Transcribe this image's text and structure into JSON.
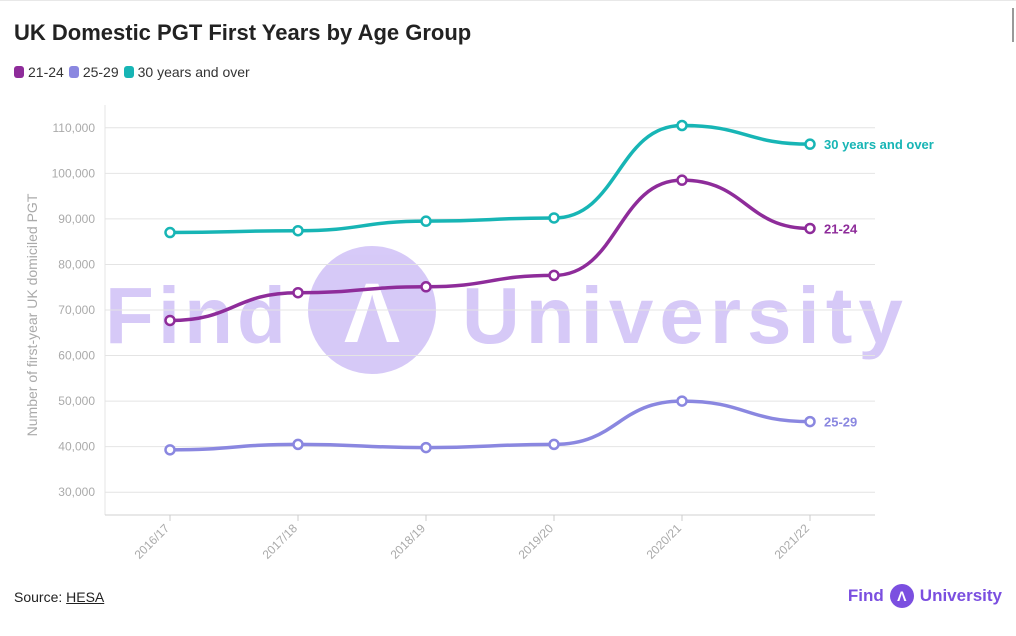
{
  "page": {
    "title": "UK Domestic PGT First Years by Age Group",
    "source_prefix": "Source: ",
    "source_link": "HESA",
    "brand_left": "Find",
    "brand_right": "University",
    "brand_glyph": "Λ",
    "watermark_left": "Find",
    "watermark_right": "University",
    "watermark_glyph": "Λ"
  },
  "colors": {
    "series_21_24": "#8e2c9a",
    "series_25_29": "#8a87e0",
    "series_30_plus": "#17b5b5",
    "watermark": "#c9b8f5",
    "grid": "#e4e4e4",
    "axis_text": "#aaaaaa"
  },
  "chart_data": {
    "type": "line",
    "title": "UK Domestic PGT First Years by Age Group",
    "xlabel": "",
    "ylabel": "Number of first-year UK domiciled PGT",
    "categories": [
      "2016/17",
      "2017/18",
      "2018/19",
      "2019/20",
      "2020/21",
      "2021/22"
    ],
    "ylim": [
      25000,
      115000
    ],
    "yticks": [
      30000,
      40000,
      50000,
      60000,
      70000,
      80000,
      90000,
      100000,
      110000
    ],
    "ytick_labels": [
      "30,000",
      "40,000",
      "50,000",
      "60,000",
      "70,000",
      "80,000",
      "90,000",
      "100,000",
      "110,000"
    ],
    "grid": true,
    "legend_position": "top-left",
    "series": [
      {
        "name": "21-24",
        "end_label": "21-24",
        "color": "#8e2c9a",
        "values": [
          67700,
          73800,
          75100,
          77600,
          98500,
          87900
        ]
      },
      {
        "name": "25-29",
        "end_label": "25-29",
        "color": "#8a87e0",
        "values": [
          39300,
          40500,
          39800,
          40500,
          50000,
          45500
        ]
      },
      {
        "name": "30 years and over",
        "end_label": "30 years and over",
        "color": "#17b5b5",
        "values": [
          87000,
          87400,
          89500,
          90200,
          110500,
          106400
        ]
      }
    ]
  }
}
